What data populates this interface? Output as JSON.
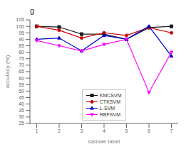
{
  "chart_data": {
    "type": "line",
    "title": "g",
    "x_label": "sample label",
    "y_label": "accuracy (%)",
    "x": [
      1,
      2,
      3,
      4,
      5,
      6,
      7
    ],
    "xlim": [
      0.7,
      7.3
    ],
    "xticks": [
      1,
      2,
      3,
      4,
      5,
      6,
      7
    ],
    "ylim": [
      25,
      105
    ],
    "yticks": [
      25,
      30,
      35,
      40,
      45,
      50,
      55,
      60,
      65,
      70,
      75,
      80,
      85,
      90,
      95,
      100,
      105
    ],
    "grid": false,
    "legend": "lower center",
    "series": [
      {
        "name": "KMCSVM",
        "color": "#1a1a1a",
        "marker": "square",
        "values": [
          100,
          99.5,
          94,
          94,
          90,
          99,
          100
        ]
      },
      {
        "name": "CTKSVM",
        "color": "#cc0000",
        "marker": "circle",
        "values": [
          100,
          97,
          91,
          95,
          93,
          99,
          95
        ]
      },
      {
        "name": "L-SVM",
        "color": "#0000cc",
        "marker": "triangle-up",
        "values": [
          90,
          91,
          81,
          93,
          90,
          100,
          77
        ]
      },
      {
        "name": "RBFSVM",
        "color": "#ff00ff",
        "marker": "triangle-down",
        "values": [
          89,
          85,
          81,
          86,
          90,
          49,
          80
        ]
      }
    ]
  }
}
